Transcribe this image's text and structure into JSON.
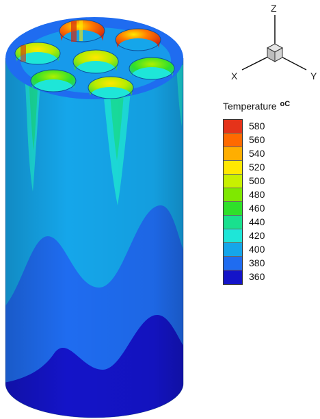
{
  "legend": {
    "title": "Temperature",
    "unit": "oC",
    "entries": [
      {
        "label": "580",
        "color": "#e5331a"
      },
      {
        "label": "560",
        "color": "#ff6a00"
      },
      {
        "label": "540",
        "color": "#ffae00"
      },
      {
        "label": "520",
        "color": "#ffe800"
      },
      {
        "label": "500",
        "color": "#c8f000"
      },
      {
        "label": "480",
        "color": "#7fe800"
      },
      {
        "label": "460",
        "color": "#2fe02a"
      },
      {
        "label": "440",
        "color": "#19e08e"
      },
      {
        "label": "420",
        "color": "#1ee6d8"
      },
      {
        "label": "400",
        "color": "#15a6ea"
      },
      {
        "label": "380",
        "color": "#1f6cf0"
      },
      {
        "label": "360",
        "color": "#1414c8"
      }
    ]
  },
  "axes": {
    "x": "X",
    "y": "Y",
    "z": "Z"
  }
}
